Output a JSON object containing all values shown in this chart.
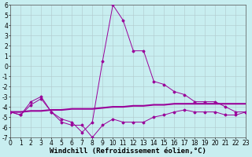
{
  "title": "",
  "xlabel": "Windchill (Refroidissement éolien,°C)",
  "ylabel": "",
  "background_color": "#c8eef0",
  "grid_color": "#b0c8cc",
  "line_color": "#990099",
  "ylim": [
    -7,
    6
  ],
  "xlim": [
    0,
    23
  ],
  "yticks": [
    -7,
    -6,
    -5,
    -4,
    -3,
    -2,
    -1,
    0,
    1,
    2,
    3,
    4,
    5,
    6
  ],
  "xticks": [
    0,
    1,
    2,
    3,
    4,
    5,
    6,
    7,
    8,
    9,
    10,
    11,
    12,
    13,
    14,
    15,
    16,
    17,
    18,
    19,
    20,
    21,
    22,
    23
  ],
  "line1_x": [
    0,
    1,
    2,
    3,
    4,
    5,
    6,
    7,
    8,
    9,
    10,
    11,
    12,
    13,
    14,
    15,
    16,
    17,
    18,
    19,
    20,
    21,
    22,
    23
  ],
  "line1_y": [
    -4.5,
    -4.8,
    -3.8,
    -3.2,
    -4.5,
    -5.5,
    -5.8,
    -5.8,
    -7.0,
    -5.8,
    -5.2,
    -5.5,
    -5.5,
    -5.5,
    -5.0,
    -4.8,
    -4.5,
    -4.3,
    -4.5,
    -4.5,
    -4.5,
    -4.8,
    -4.8,
    -4.5
  ],
  "line2_x": [
    0,
    1,
    2,
    3,
    4,
    5,
    6,
    7,
    8,
    9,
    10,
    11,
    12,
    13,
    14,
    15,
    16,
    17,
    18,
    19,
    20,
    21,
    22,
    23
  ],
  "line2_y": [
    -4.5,
    -4.5,
    -4.4,
    -4.4,
    -4.3,
    -4.3,
    -4.2,
    -4.2,
    -4.2,
    -4.1,
    -4.0,
    -4.0,
    -3.9,
    -3.9,
    -3.8,
    -3.8,
    -3.7,
    -3.7,
    -3.7,
    -3.7,
    -3.7,
    -3.7,
    -3.7,
    -3.7
  ],
  "line3_x": [
    0,
    1,
    2,
    3,
    4,
    5,
    6,
    7,
    8,
    9,
    10,
    11,
    12,
    13,
    14,
    15,
    16,
    17,
    18,
    19,
    20,
    21,
    22,
    23
  ],
  "line3_y": [
    -4.5,
    -4.8,
    -3.5,
    -3.0,
    -4.5,
    -5.2,
    -5.5,
    -6.5,
    -5.5,
    0.5,
    6.0,
    4.5,
    1.5,
    1.5,
    -1.5,
    -1.8,
    -2.5,
    -2.8,
    -3.5,
    -3.5,
    -3.5,
    -4.0,
    -4.5,
    -4.5
  ],
  "tick_fontsize": 5.5,
  "xlabel_fontsize": 6.5,
  "fig_width": 3.2,
  "fig_height": 2.0,
  "dpi": 100
}
